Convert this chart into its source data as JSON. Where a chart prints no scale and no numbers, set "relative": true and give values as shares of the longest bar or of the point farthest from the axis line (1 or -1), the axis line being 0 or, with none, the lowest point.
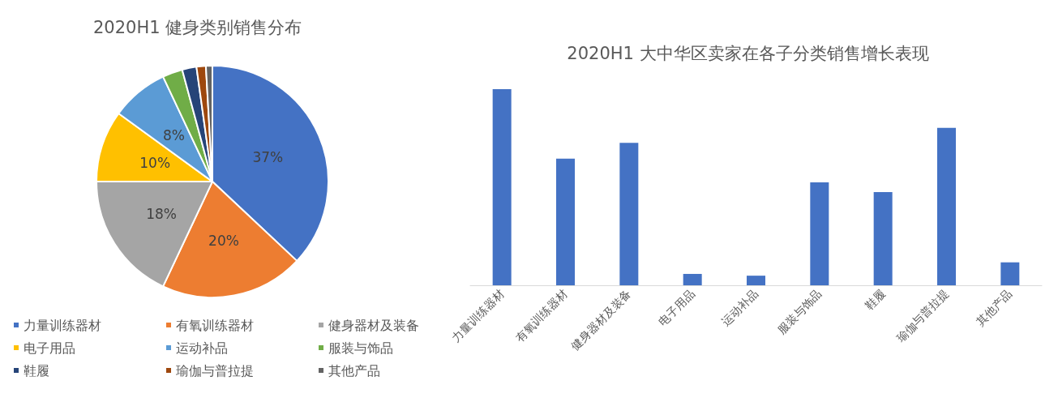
{
  "chart_data": [
    {
      "type": "pie",
      "title": "2020H1 健身类别销售分布",
      "categories": [
        "力量训练器材",
        "有氧训练器材",
        "健身器材及装备",
        "电子用品",
        "运动补品",
        "服装与饰品",
        "鞋履",
        "瑜伽与普拉提",
        "其他产品"
      ],
      "values": [
        37,
        20,
        18,
        10,
        8,
        2.8,
        2,
        1.3,
        0.9
      ],
      "colors": [
        "#4472c4",
        "#ed7d31",
        "#a5a5a5",
        "#ffc000",
        "#5b9bd5",
        "#70ad47",
        "#264478",
        "#9e480e",
        "#636363"
      ],
      "value_labels": [
        "37%",
        "20%",
        "18%",
        "10%",
        "8%",
        null,
        null,
        null,
        null
      ],
      "legend": "bottom"
    },
    {
      "type": "bar",
      "title": "2020H1 大中华区卖家在各子分类销售增长表现",
      "relative": true,
      "categories": [
        "力量训练器材",
        "有氧训练器材",
        "健身器材及装备",
        "电子用品",
        "运动补品",
        "服装与饰品",
        "鞋履",
        "瑜伽与普拉提",
        "其他产品"
      ],
      "values": [
        1,
        0.646,
        0.726,
        0.058,
        0.049,
        0.525,
        0.475,
        0.803,
        0.117
      ],
      "color": "#4472c4"
    }
  ]
}
